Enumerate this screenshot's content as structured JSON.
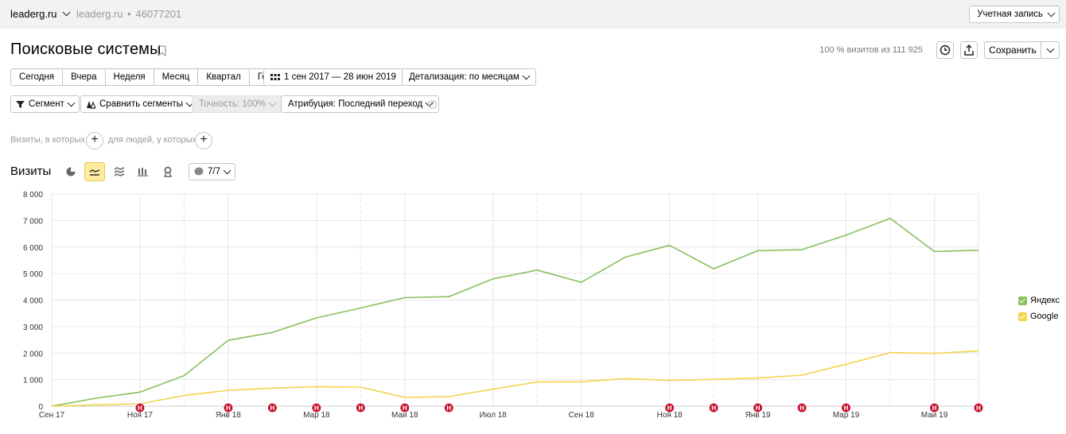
{
  "topbar": {
    "site": "leaderg.ru",
    "counter_name": "leaderg.ru",
    "counter_sep": "•",
    "counter_id": "46077201",
    "account": "Учетная запись"
  },
  "header": {
    "title": "Поисковые системы",
    "visits_share": "100 % визитов из 111 925",
    "save": "Сохранить"
  },
  "periods": [
    "Сегодня",
    "Вчера",
    "Неделя",
    "Месяц",
    "Квартал",
    "Год"
  ],
  "date_range": "1 сен 2017 — 28 июн 2019",
  "detail": "Детализация: по месяцам",
  "segment": "Сегмент",
  "compare": "Сравнить сегменты",
  "accuracy": "Точность: 100%",
  "attribution": "Атрибуция: Последний переход",
  "conditions": {
    "visits_where": "Визиты, в которых",
    "people_where": "для людей, у которых",
    "plus": "+"
  },
  "chart_section": {
    "title": "Визиты",
    "notes": "7/7"
  },
  "colors": {
    "yandex": "#89c15d",
    "google": "#f4d44b",
    "note_marker": "#c8102e",
    "active_tab": "#ffeba0"
  },
  "icons": [
    "bookmark-icon",
    "clock-icon",
    "export-icon",
    "calendar-icon",
    "filter-icon",
    "segments-icon",
    "help-icon",
    "pie-chart-icon",
    "line-chart-icon",
    "area-chart-icon",
    "bar-chart-icon",
    "map-icon",
    "note-icon"
  ],
  "chart_data": {
    "type": "line",
    "x": [
      "2017-09",
      "2017-10",
      "2017-11",
      "2017-12",
      "2018-01",
      "2018-02",
      "2018-03",
      "2018-04",
      "2018-05",
      "2018-06",
      "2018-07",
      "2018-08",
      "2018-09",
      "2018-10",
      "2018-11",
      "2018-12",
      "2019-01",
      "2019-02",
      "2019-03",
      "2019-04",
      "2019-05",
      "2019-06"
    ],
    "x_tick_labels": [
      "Сен 17",
      "Ноя 17",
      "Янв 18",
      "Мар 18",
      "Май 18",
      "Июл 18",
      "Сен 18",
      "Ноя 18",
      "Янв 19",
      "Мар 19",
      "Май 19"
    ],
    "ylim": [
      0,
      8000
    ],
    "y_ticks": [
      "0",
      "1 000",
      "2 000",
      "3 000",
      "4 000",
      "5 000",
      "6 000",
      "7 000",
      "8 000"
    ],
    "series": [
      {
        "name": "Яндекс",
        "values": [
          0,
          300,
          530,
          1150,
          2480,
          2780,
          3330,
          3700,
          4090,
          4130,
          4800,
          5130,
          4670,
          5620,
          6060,
          5180,
          5860,
          5900,
          6450,
          7080,
          5830,
          5880
        ]
      },
      {
        "name": "Google",
        "values": [
          0,
          50,
          90,
          400,
          600,
          680,
          730,
          720,
          330,
          360,
          640,
          910,
          920,
          1040,
          970,
          1010,
          1060,
          1170,
          1580,
          2020,
          1990,
          2080
        ]
      }
    ],
    "legend_position": "right",
    "grid": true,
    "notes_x": [
      "2017-11",
      "2018-01",
      "2018-02",
      "2018-03",
      "2018-04",
      "2018-05",
      "2018-06",
      "2018-11",
      "2018-12",
      "2019-01",
      "2019-02",
      "2019-03",
      "2019-05",
      "2019-06"
    ],
    "note_label": "Н"
  }
}
